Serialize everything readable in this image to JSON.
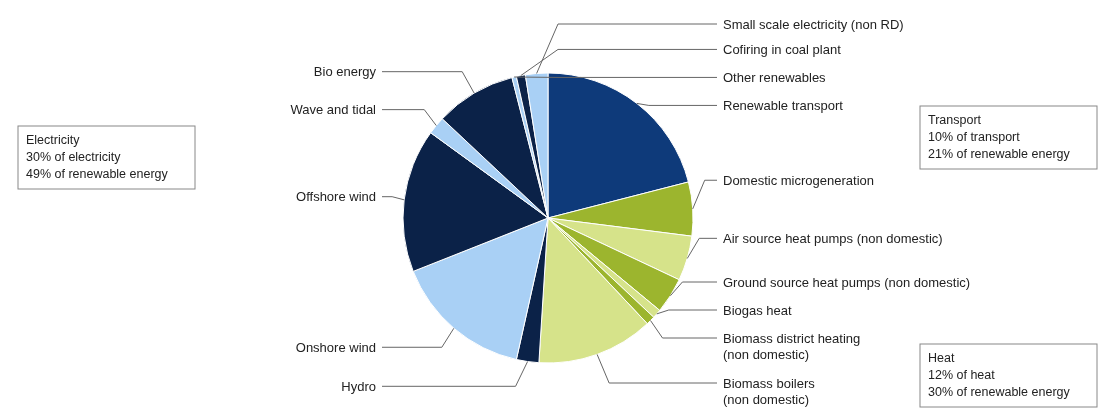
{
  "chart_data": {
    "type": "pie",
    "categories": [
      "Renewable transport",
      "Domestic microgeneration",
      "Air source heat pumps (non domestic)",
      "Ground source heat pumps (non domestic)",
      "Biogas heat",
      "Biomass district heating (non domestic)",
      "Biomass boilers (non domestic)",
      "Hydro",
      "Onshore wind",
      "Offshore wind",
      "Wave and tidal",
      "Bio energy",
      "Other renewables",
      "Cofiring in coal plant",
      "Small scale electricity (non RD)"
    ],
    "values": [
      21,
      6,
      5,
      4,
      1,
      1,
      13,
      2.5,
      15.5,
      16,
      2,
      9,
      0.5,
      1,
      2.5
    ],
    "colors": [
      "#0e3a7a",
      "#9cb52e",
      "#d6e38a",
      "#9cb52e",
      "#d6e38a",
      "#9cb52e",
      "#d6e38a",
      "#0b2248",
      "#a9d0f5",
      "#0b2248",
      "#a9d0f5",
      "#0b2248",
      "#a9d0f5",
      "#0b2248",
      "#a9d0f5"
    ],
    "annotations": [
      "Electricity\n30% of electricity\n49% of renewable energy",
      "Transport\n10% of transport\n21% of renewable energy",
      "Heat\n12% of heat\n30% of renewable energy"
    ]
  }
}
